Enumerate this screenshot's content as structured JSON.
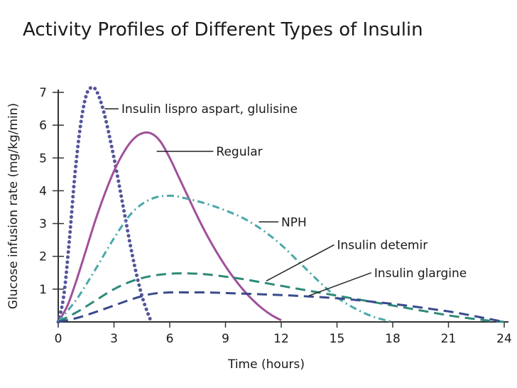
{
  "chart_data": {
    "type": "line",
    "title": "Activity Profiles of Different Types of Insulin",
    "xlabel": "Time (hours)",
    "ylabel": "Glucose infusion rate (mg/kg/min)",
    "xlim": [
      0,
      24
    ],
    "ylim": [
      0,
      7
    ],
    "xticks": [
      0,
      3,
      6,
      9,
      12,
      15,
      18,
      21,
      24
    ],
    "yticks": [
      1,
      2,
      3,
      4,
      5,
      6,
      7
    ],
    "grid": false,
    "legend": "inline annotations",
    "series": [
      {
        "name": "Insulin lispro aspart, glulisine",
        "color": "#55559a",
        "dash": "dotted",
        "points": [
          [
            0,
            0
          ],
          [
            0.3,
            0.8
          ],
          [
            0.6,
            2.5
          ],
          [
            0.9,
            4.5
          ],
          [
            1.2,
            6.0
          ],
          [
            1.5,
            6.9
          ],
          [
            1.8,
            7.15
          ],
          [
            2.1,
            7.0
          ],
          [
            2.5,
            6.3
          ],
          [
            3.0,
            5.0
          ],
          [
            3.5,
            3.5
          ],
          [
            4.0,
            2.0
          ],
          [
            4.5,
            0.8
          ],
          [
            5.0,
            0
          ]
        ]
      },
      {
        "name": "Regular",
        "color": "#a0509a",
        "dash": "solid",
        "points": [
          [
            0,
            0
          ],
          [
            0.5,
            0.5
          ],
          [
            1,
            1.3
          ],
          [
            1.5,
            2.2
          ],
          [
            2,
            3.1
          ],
          [
            2.5,
            3.9
          ],
          [
            3,
            4.6
          ],
          [
            3.5,
            5.15
          ],
          [
            4,
            5.55
          ],
          [
            4.5,
            5.75
          ],
          [
            5,
            5.75
          ],
          [
            5.5,
            5.5
          ],
          [
            6,
            5.0
          ],
          [
            6.5,
            4.4
          ],
          [
            7,
            3.8
          ],
          [
            7.5,
            3.2
          ],
          [
            8,
            2.65
          ],
          [
            8.5,
            2.15
          ],
          [
            9,
            1.7
          ],
          [
            9.5,
            1.3
          ],
          [
            10,
            0.95
          ],
          [
            10.5,
            0.65
          ],
          [
            11,
            0.4
          ],
          [
            11.5,
            0.2
          ],
          [
            12,
            0.05
          ]
        ]
      },
      {
        "name": "NPH",
        "color": "#4aa8a8",
        "dash": "dash-dot",
        "points": [
          [
            0,
            0
          ],
          [
            1,
            0.7
          ],
          [
            2,
            1.6
          ],
          [
            3,
            2.55
          ],
          [
            4,
            3.35
          ],
          [
            5,
            3.75
          ],
          [
            6,
            3.85
          ],
          [
            7,
            3.75
          ],
          [
            8,
            3.6
          ],
          [
            9,
            3.4
          ],
          [
            10,
            3.15
          ],
          [
            11,
            2.8
          ],
          [
            12,
            2.35
          ],
          [
            13,
            1.8
          ],
          [
            14,
            1.25
          ],
          [
            15,
            0.75
          ],
          [
            16,
            0.4
          ],
          [
            17,
            0.15
          ],
          [
            18,
            0
          ]
        ]
      },
      {
        "name": "Insulin detemir",
        "color": "#2e8a78",
        "dash": "dashed",
        "points": [
          [
            0,
            0
          ],
          [
            1,
            0.3
          ],
          [
            2,
            0.65
          ],
          [
            3,
            1.0
          ],
          [
            4,
            1.25
          ],
          [
            5,
            1.4
          ],
          [
            6,
            1.47
          ],
          [
            7,
            1.48
          ],
          [
            8,
            1.45
          ],
          [
            9,
            1.38
          ],
          [
            10,
            1.3
          ],
          [
            11,
            1.2
          ],
          [
            12,
            1.1
          ],
          [
            13,
            1.0
          ],
          [
            14,
            0.9
          ],
          [
            15,
            0.8
          ],
          [
            16,
            0.7
          ],
          [
            17,
            0.6
          ],
          [
            18,
            0.5
          ],
          [
            19,
            0.4
          ],
          [
            20,
            0.3
          ],
          [
            21,
            0.2
          ],
          [
            22,
            0.12
          ],
          [
            23,
            0.05
          ],
          [
            24,
            0
          ]
        ]
      },
      {
        "name": "Insulin glargine",
        "color": "#3a4a8c",
        "dash": "dashed",
        "points": [
          [
            0,
            0
          ],
          [
            1,
            0.12
          ],
          [
            2,
            0.3
          ],
          [
            3,
            0.5
          ],
          [
            4,
            0.7
          ],
          [
            5,
            0.85
          ],
          [
            6,
            0.9
          ],
          [
            7,
            0.9
          ],
          [
            8,
            0.9
          ],
          [
            9,
            0.88
          ],
          [
            10,
            0.86
          ],
          [
            11,
            0.84
          ],
          [
            12,
            0.82
          ],
          [
            13,
            0.79
          ],
          [
            14,
            0.76
          ],
          [
            15,
            0.72
          ],
          [
            16,
            0.67
          ],
          [
            17,
            0.61
          ],
          [
            18,
            0.55
          ],
          [
            19,
            0.48
          ],
          [
            20,
            0.4
          ],
          [
            21,
            0.32
          ],
          [
            22,
            0.22
          ],
          [
            23,
            0.11
          ],
          [
            24,
            0
          ]
        ]
      }
    ],
    "annotations": [
      {
        "text": "Insulin lispro aspart, glulisine",
        "anchor": [
          2.5,
          6.5
        ],
        "label_at": [
          3.4,
          6.5
        ]
      },
      {
        "text": "Regular",
        "anchor": [
          5.3,
          5.2
        ],
        "label_at": [
          8.5,
          5.2
        ]
      },
      {
        "text": "NPH",
        "anchor": [
          10.8,
          3.05
        ],
        "label_at": [
          12.0,
          3.05
        ]
      },
      {
        "text": "Insulin detemir",
        "anchor": [
          11.2,
          1.25
        ],
        "label_at": [
          15.0,
          2.35
        ]
      },
      {
        "text": "Insulin glargine",
        "anchor": [
          13.5,
          0.8
        ],
        "label_at": [
          17.0,
          1.5
        ]
      }
    ]
  }
}
